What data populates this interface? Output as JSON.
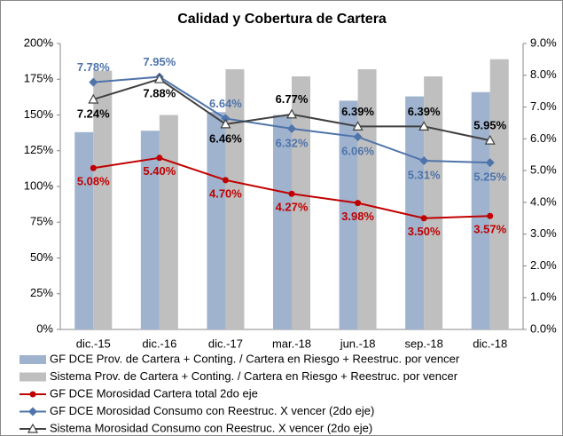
{
  "chart_data": {
    "type": "bar_line",
    "title": "Calidad y Cobertura de Cartera",
    "categories": [
      "dic.-15",
      "dic.-16",
      "dic.-17",
      "mar.-18",
      "jun.-18",
      "sep.-18",
      "dic.-18"
    ],
    "series": [
      {
        "name": "GF DCE Prov. de Cartera + Conting. / Cartera en Riesgo + Reestruc. por vencer",
        "color": "#9fb3cf",
        "kind": "bar",
        "values": [
          138,
          139,
          152,
          150,
          160,
          163,
          166
        ]
      },
      {
        "name": "Sistema Prov. de Cartera + Conting. / Cartera en Riesgo + Reestruc. por vencer",
        "color": "#bfbfbf",
        "kind": "bar",
        "values": [
          181,
          150,
          182,
          177,
          182,
          177,
          189
        ]
      },
      {
        "name": "GF DCE Morosidad Cartera total 2do eje",
        "color": "#c00000",
        "kind": "line",
        "marker": "circle",
        "axis": "y2",
        "values": [
          5.08,
          5.4,
          4.7,
          4.27,
          3.98,
          3.5,
          3.57
        ],
        "value_labels": [
          "5.08%",
          "5.40%",
          "4.70%",
          "4.27%",
          "3.98%",
          "3.50%",
          "3.57%"
        ]
      },
      {
        "name": "GF DCE Morosidad Consumo con Reestruc. X vencer (2do eje)",
        "color": "#4f74aa",
        "kind": "line",
        "marker": "diamond",
        "axis": "y2",
        "values": [
          7.78,
          7.95,
          6.64,
          6.32,
          6.06,
          5.31,
          5.25
        ],
        "value_labels": [
          "7.78%",
          "7.95%",
          "6.64%",
          "6.32%",
          "6.06%",
          "5.31%",
          "5.25%"
        ]
      },
      {
        "name": "Sistema Morosidad Consumo con Reestruc. X vencer (2do eje)",
        "color": "#404040",
        "kind": "line",
        "marker": "triangle",
        "axis": "y2",
        "values": [
          7.24,
          7.88,
          6.46,
          6.77,
          6.39,
          6.39,
          5.95
        ],
        "value_labels": [
          "7.24%",
          "7.88%",
          "6.46%",
          "6.77%",
          "6.39%",
          "6.39%",
          "5.95%"
        ]
      }
    ],
    "ylim": [
      0,
      200
    ],
    "yticks": [
      {
        "value": 0,
        "label": "0%"
      },
      {
        "value": 25,
        "label": "25%"
      },
      {
        "value": 50,
        "label": "50%"
      },
      {
        "value": 75,
        "label": "75%"
      },
      {
        "value": 100,
        "label": "100%"
      },
      {
        "value": 125,
        "label": "125%"
      },
      {
        "value": 150,
        "label": "150%"
      },
      {
        "value": 175,
        "label": "175%"
      },
      {
        "value": 200,
        "label": "200%"
      }
    ],
    "y2lim": [
      0,
      9
    ],
    "y2ticks": [
      {
        "value": 0,
        "label": "0.0%"
      },
      {
        "value": 1,
        "label": "1.0%"
      },
      {
        "value": 2,
        "label": "2.0%"
      },
      {
        "value": 3,
        "label": "3.0%"
      },
      {
        "value": 4,
        "label": "4.0%"
      },
      {
        "value": 5,
        "label": "5.0%"
      },
      {
        "value": 6,
        "label": "6.0%"
      },
      {
        "value": 7,
        "label": "7.0%"
      },
      {
        "value": 8,
        "label": "8.0%"
      },
      {
        "value": 9,
        "label": "9.0%"
      }
    ],
    "legend": "bottom"
  }
}
